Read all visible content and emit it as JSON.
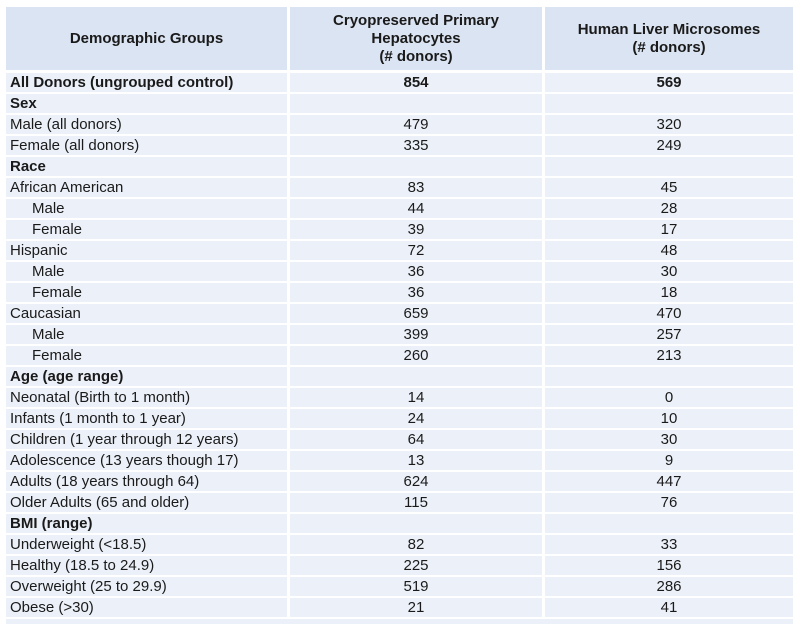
{
  "colors": {
    "header_bg": "#dbe4f2",
    "row_bg": "#ecf1f9",
    "gridline": "#ffffff",
    "text": "#1a1a1a"
  },
  "table": {
    "columns": [
      {
        "label": "Demographic Groups"
      },
      {
        "label": "Cryopreserved Primary\nHepatocytes\n(# donors)"
      },
      {
        "label": "Human Liver Microsomes\n(# donors)"
      }
    ],
    "rows": [
      {
        "label": "All Donors (ungrouped control)",
        "chp": "854",
        "hlm": "569",
        "bold": true,
        "indent": false
      },
      {
        "label": "Sex",
        "chp": "",
        "hlm": "",
        "bold": true,
        "indent": false
      },
      {
        "label": "Male (all donors)",
        "chp": "479",
        "hlm": "320",
        "bold": false,
        "indent": false
      },
      {
        "label": "Female (all donors)",
        "chp": "335",
        "hlm": "249",
        "bold": false,
        "indent": false
      },
      {
        "label": "Race",
        "chp": "",
        "hlm": "",
        "bold": true,
        "indent": false
      },
      {
        "label": "African American",
        "chp": "83",
        "hlm": "45",
        "bold": false,
        "indent": false
      },
      {
        "label": "Male",
        "chp": "44",
        "hlm": "28",
        "bold": false,
        "indent": true
      },
      {
        "label": "Female",
        "chp": "39",
        "hlm": "17",
        "bold": false,
        "indent": true
      },
      {
        "label": "Hispanic",
        "chp": "72",
        "hlm": "48",
        "bold": false,
        "indent": false
      },
      {
        "label": "Male",
        "chp": "36",
        "hlm": "30",
        "bold": false,
        "indent": true
      },
      {
        "label": "Female",
        "chp": "36",
        "hlm": "18",
        "bold": false,
        "indent": true
      },
      {
        "label": "Caucasian",
        "chp": "659",
        "hlm": "470",
        "bold": false,
        "indent": false
      },
      {
        "label": "Male",
        "chp": "399",
        "hlm": "257",
        "bold": false,
        "indent": true
      },
      {
        "label": "Female",
        "chp": "260",
        "hlm": "213",
        "bold": false,
        "indent": true
      },
      {
        "label": "Age (age range)",
        "chp": "",
        "hlm": "",
        "bold": true,
        "indent": false
      },
      {
        "label": "Neonatal (Birth to 1 month)",
        "chp": "14",
        "hlm": "0",
        "bold": false,
        "indent": false
      },
      {
        "label": "Infants (1 month to 1 year)",
        "chp": "24",
        "hlm": "10",
        "bold": false,
        "indent": false
      },
      {
        "label": "Children (1 year through 12 years)",
        "chp": "64",
        "hlm": "30",
        "bold": false,
        "indent": false
      },
      {
        "label": "Adolescence (13 years though 17)",
        "chp": "13",
        "hlm": "9",
        "bold": false,
        "indent": false
      },
      {
        "label": "Adults (18 years through 64)",
        "chp": "624",
        "hlm": "447",
        "bold": false,
        "indent": false
      },
      {
        "label": "Older Adults (65 and older)",
        "chp": "115",
        "hlm": "76",
        "bold": false,
        "indent": false
      },
      {
        "label": "BMI (range)",
        "chp": "",
        "hlm": "",
        "bold": true,
        "indent": false
      },
      {
        "label": "Underweight (<18.5)",
        "chp": "82",
        "hlm": "33",
        "bold": false,
        "indent": false
      },
      {
        "label": "Healthy (18.5 to 24.9)",
        "chp": "225",
        "hlm": "156",
        "bold": false,
        "indent": false
      },
      {
        "label": "Overweight (25 to 29.9)",
        "chp": "519",
        "hlm": "286",
        "bold": false,
        "indent": false
      },
      {
        "label": "Obese (>30)",
        "chp": "21",
        "hlm": "41",
        "bold": false,
        "indent": false
      }
    ]
  }
}
